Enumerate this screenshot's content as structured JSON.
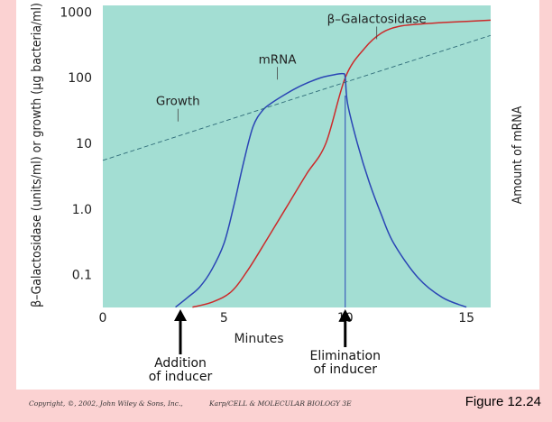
{
  "chart_data": {
    "type": "line",
    "title": "",
    "xlabel": "Minutes",
    "ylabel": "β–Galactosidase (units/ml) or growth (µg bacteria/ml)",
    "y2label": "Amount of mRNA",
    "xlim": [
      0,
      16
    ],
    "ylim_log10": [
      -1.5,
      3.1
    ],
    "xticks": [
      "0",
      "5",
      "10",
      "15"
    ],
    "xtick_values": [
      0,
      5,
      10,
      15
    ],
    "yticks": [
      "1000",
      "100",
      "10",
      "1.0",
      "0.1"
    ],
    "ytick_values": [
      1000,
      100,
      10,
      1,
      0.1
    ],
    "series": [
      {
        "name": "β–Galactosidase",
        "color": "#cc2a2a",
        "x": [
          3.7,
          4.5,
          5.3,
          6.0,
          6.8,
          7.6,
          8.4,
          9.2,
          10.0,
          10.8,
          11.5,
          12.2,
          13.0,
          14.0,
          15.0,
          16.0
        ],
        "y": [
          0.032,
          0.038,
          0.055,
          0.12,
          0.36,
          1.1,
          3.4,
          10,
          100,
          280,
          480,
          600,
          650,
          690,
          720,
          750
        ]
      },
      {
        "name": "mRNA",
        "color": "#2a45b5",
        "x": [
          3.0,
          3.5,
          4.0,
          4.5,
          5.0,
          5.4,
          5.8,
          6.2,
          6.6,
          7.0,
          7.5,
          8.0,
          8.5,
          9.0,
          9.5,
          9.9,
          10.0,
          10.1,
          10.5,
          11.0,
          11.5,
          12.0,
          13.0,
          14.0,
          15.0
        ],
        "y": [
          0.032,
          0.045,
          0.065,
          0.12,
          0.3,
          1.1,
          5,
          18,
          32,
          42,
          55,
          70,
          85,
          100,
          110,
          115,
          100,
          40,
          10,
          2.5,
          0.8,
          0.3,
          0.09,
          0.045,
          0.032
        ]
      },
      {
        "name": "Growth",
        "color": "#2e6b78",
        "style": "dashed",
        "x": [
          0,
          16
        ],
        "y": [
          5.5,
          440
        ]
      }
    ],
    "annotations": [
      {
        "text": "β–Galactosidase",
        "x": 11.3,
        "y": 680
      },
      {
        "text": "mRNA",
        "x": 7.2,
        "y": 165
      },
      {
        "text": "Growth",
        "x": 3.1,
        "y": 38
      }
    ],
    "events": [
      {
        "name": "addition",
        "x": 3.2,
        "lines": [
          "Addition",
          "of inducer"
        ]
      },
      {
        "name": "elimination",
        "x": 10.0,
        "lines": [
          "Elimination",
          "of inducer"
        ]
      }
    ]
  },
  "footer": {
    "copyright": "Copyright, ©, 2002, John Wiley & Sons, Inc.,",
    "book": "Karp/CELL & MOLECULAR BIOLOGY 3E",
    "figure": "Figure 12.24"
  },
  "colors": {
    "plot_bg": "#a3ded3",
    "page_bg": "#fbd2d2"
  }
}
